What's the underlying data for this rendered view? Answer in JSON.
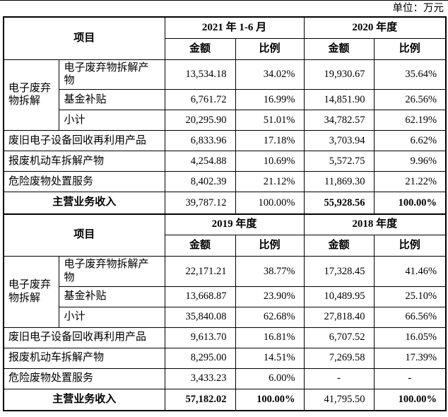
{
  "unit_label": "单位：万元",
  "header_labels": {
    "item": "项目",
    "amount": "金额",
    "ratio": "比例"
  },
  "tables": [
    {
      "periods": [
        "2021 年 1-6 月",
        "2020 年度"
      ],
      "group": {
        "label": "电子废弃物拆解",
        "rows": [
          {
            "label": "电子废弃物拆解产物",
            "cells": [
              "13,534.18",
              "34.02%",
              "19,930.67",
              "35.64%"
            ]
          },
          {
            "label": "基金补贴",
            "cells": [
              "6,761.72",
              "16.99%",
              "14,851.90",
              "26.56%"
            ]
          },
          {
            "label": "小计",
            "cells": [
              "20,295.90",
              "51.01%",
              "34,782.57",
              "62.19%"
            ]
          }
        ]
      },
      "rows": [
        {
          "label": "废旧电子设备回收再利用产品",
          "cells": [
            "6,833.96",
            "17.18%",
            "3,703.94",
            "6.62%"
          ]
        },
        {
          "label": "报废机动车拆解产物",
          "cells": [
            "4,254.88",
            "10.69%",
            "5,572.75",
            "9.96%"
          ]
        },
        {
          "label": "危险废物处置服务",
          "cells": [
            "8,402.39",
            "21.12%",
            "11,869.30",
            "21.22%"
          ]
        }
      ],
      "total": {
        "label": "主营业务收入",
        "cells": [
          "39,787.12",
          "100.00%",
          "55,928.56",
          "100.00%"
        ],
        "bold": [
          false,
          false,
          true,
          true
        ]
      }
    },
    {
      "periods": [
        "2019 年度",
        "2018 年度"
      ],
      "group": {
        "label": "电子废弃物拆解",
        "rows": [
          {
            "label": "电子废弃物拆解产物",
            "cells": [
              "22,171.21",
              "38.77%",
              "17,328.45",
              "41.46%"
            ]
          },
          {
            "label": "基金补贴",
            "cells": [
              "13,668.87",
              "23.90%",
              "10,489.95",
              "25.10%"
            ]
          },
          {
            "label": "小计",
            "cells": [
              "35,840.08",
              "62.68%",
              "27,818.40",
              "66.56%"
            ]
          }
        ]
      },
      "rows": [
        {
          "label": "废旧电子设备回收再利用产品",
          "cells": [
            "9,613.70",
            "16.81%",
            "6,707.52",
            "16.05%"
          ]
        },
        {
          "label": "报废机动车拆解产物",
          "cells": [
            "8,295.00",
            "14.51%",
            "7,269.58",
            "17.39%"
          ]
        },
        {
          "label": "危险废物处置服务",
          "cells": [
            "3,433.23",
            "6.00%",
            "-",
            "-"
          ]
        }
      ],
      "total": {
        "label": "主营业务收入",
        "cells": [
          "57,182.02",
          "100.00%",
          "41,795.50",
          "100.00%"
        ],
        "bold": [
          true,
          true,
          false,
          true
        ]
      }
    }
  ]
}
